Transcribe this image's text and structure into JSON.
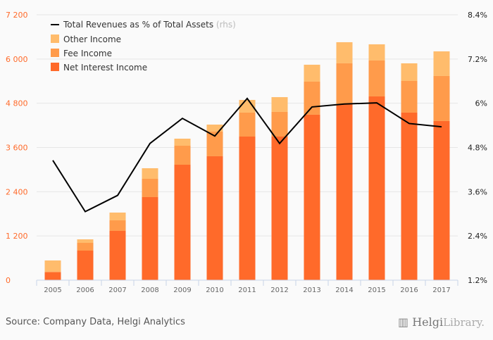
{
  "chart_data": {
    "type": "bar",
    "stacked": true,
    "categories": [
      "2005",
      "2006",
      "2007",
      "2008",
      "2009",
      "2010",
      "2011",
      "2012",
      "2013",
      "2014",
      "2015",
      "2016",
      "2017"
    ],
    "series": [
      {
        "name": "Net Interest Income",
        "color": "#ff6a2a",
        "values": [
          216,
          802,
          1337,
          2254,
          3132,
          3362,
          3896,
          3896,
          4489,
          4775,
          4985,
          4546,
          4317
        ]
      },
      {
        "name": "Fee Income",
        "color": "#ff9b4b",
        "values": [
          20,
          210,
          287,
          496,
          516,
          668,
          650,
          669,
          897,
          1108,
          974,
          859,
          1222
        ]
      },
      {
        "name": "Other Income",
        "color": "#ffbc6c",
        "values": [
          299,
          96,
          210,
          287,
          191,
          191,
          344,
          401,
          459,
          573,
          440,
          478,
          669
        ]
      }
    ],
    "line_series": {
      "name": "Total Revenues as % of Total Assets",
      "suffix": "(rhs)",
      "color": "#000000",
      "values": [
        4.45,
        3.06,
        3.5,
        4.91,
        5.59,
        5.11,
        6.13,
        4.91,
        5.9,
        5.98,
        6.01,
        5.45,
        5.36
      ]
    },
    "ylim": [
      0,
      7200
    ],
    "yticks": [
      "0",
      "1 200",
      "2 400",
      "3 600",
      "4 800",
      "6 000",
      "7 200"
    ],
    "y2lim": [
      1.2,
      8.4
    ],
    "y2ticks": [
      "1.2%",
      "2.4%",
      "3.6%",
      "4.8%",
      "6%",
      "7.2%",
      "8.4%"
    ],
    "legend_position": "top-left",
    "grid": true,
    "colors": {
      "left_axis": "#ff6a2a",
      "right_axis": "#222222",
      "grid": "#e6e6e6"
    }
  },
  "footer": {
    "source": "Source: Company Data, Helgi Analytics",
    "logo_text": "HelgiLibrary."
  }
}
